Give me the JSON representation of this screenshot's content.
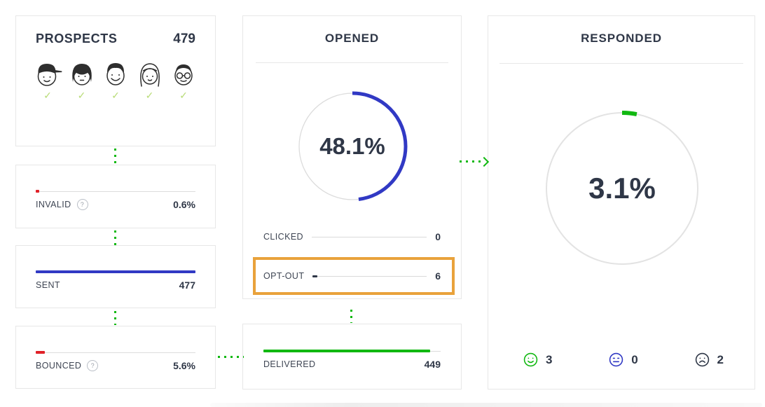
{
  "colors": {
    "blue": "#3139c4",
    "green": "#11b811",
    "red": "#e02128",
    "orange": "#e9a23b",
    "dark_text": "#2f3747"
  },
  "icons": {
    "help": "?",
    "check": "✓"
  },
  "prospects": {
    "title": "PROSPECTS",
    "count": "479",
    "avatars": [
      "avatar-boy-cap",
      "avatar-girl-bob",
      "avatar-man-short-hair",
      "avatar-woman-long-hair",
      "avatar-man-glasses"
    ]
  },
  "invalid": {
    "label": "INVALID",
    "value": "0.6%",
    "bar_percent": 0.6
  },
  "sent": {
    "label": "SENT",
    "value": "477",
    "bar_percent": 100
  },
  "bounced": {
    "label": "BOUNCED",
    "value": "5.6%",
    "bar_percent": 5.6
  },
  "opened": {
    "title": "OPENED",
    "percent": 48.1,
    "percent_label": "48.1%",
    "rows": [
      {
        "label": "CLICKED",
        "value": "0",
        "bar_percent": 0,
        "highlighted": false
      },
      {
        "label": "OPT-OUT",
        "value": "6",
        "bar_percent": 4,
        "highlighted": true
      }
    ]
  },
  "delivered": {
    "label": "DELIVERED",
    "value": "449",
    "bar_percent": 94
  },
  "responded": {
    "title": "RESPONDED",
    "percent": 3.1,
    "percent_label": "3.1%",
    "sentiments": [
      {
        "name": "positive",
        "count": "3",
        "color": "#11b811"
      },
      {
        "name": "neutral",
        "count": "0",
        "color": "#3139c4"
      },
      {
        "name": "negative",
        "count": "2",
        "color": "#2f3747"
      }
    ]
  }
}
